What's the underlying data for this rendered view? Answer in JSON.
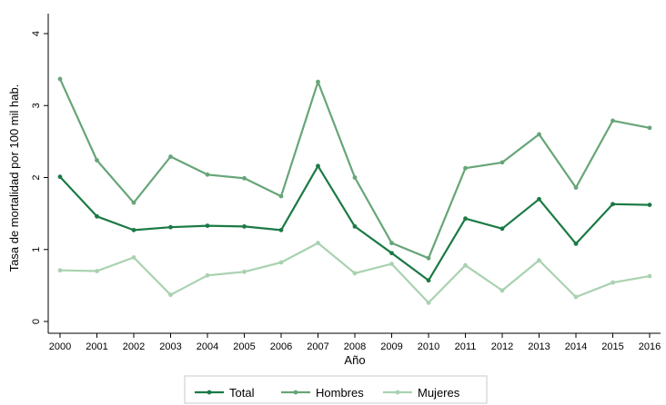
{
  "chart_data": {
    "type": "line",
    "title": "",
    "xlabel": "Año",
    "ylabel": "Tasa de mortalidad por 100 mil hab.",
    "x": [
      "2000",
      "2001",
      "2002",
      "2003",
      "2004",
      "2005",
      "2006",
      "2007",
      "2008",
      "2009",
      "2010",
      "2011",
      "2012",
      "2013",
      "2014",
      "2015",
      "2016"
    ],
    "ylim": [
      0,
      4
    ],
    "yticks": [
      "0",
      "1",
      "2",
      "3",
      "4"
    ],
    "grid": false,
    "legend_position": "bottom",
    "series": [
      {
        "name": "Total",
        "color": "#1b7a45",
        "values": [
          2.01,
          1.46,
          1.27,
          1.31,
          1.33,
          1.32,
          1.27,
          2.16,
          1.32,
          0.95,
          0.57,
          1.43,
          1.29,
          1.7,
          1.08,
          1.63,
          1.62
        ]
      },
      {
        "name": "Hombres",
        "color": "#67a578",
        "values": [
          3.37,
          2.24,
          1.65,
          2.29,
          2.04,
          1.99,
          1.74,
          3.33,
          2.0,
          1.09,
          0.88,
          2.13,
          2.21,
          2.6,
          1.86,
          2.79,
          2.69
        ]
      },
      {
        "name": "Mujeres",
        "color": "#a9d2b0",
        "values": [
          0.71,
          0.7,
          0.89,
          0.37,
          0.64,
          0.69,
          0.82,
          1.09,
          0.67,
          0.8,
          0.26,
          0.78,
          0.43,
          0.85,
          0.34,
          0.54,
          0.63
        ]
      }
    ]
  }
}
